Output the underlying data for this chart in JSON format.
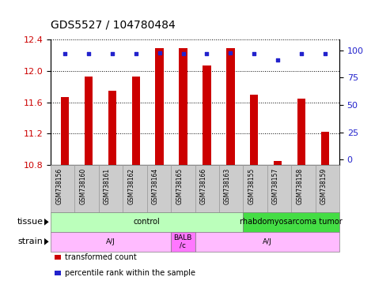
{
  "title": "GDS5527 / 104780484",
  "samples": [
    "GSM738156",
    "GSM738160",
    "GSM738161",
    "GSM738162",
    "GSM738164",
    "GSM738165",
    "GSM738166",
    "GSM738163",
    "GSM738155",
    "GSM738157",
    "GSM738158",
    "GSM738159"
  ],
  "bar_values": [
    11.67,
    11.93,
    11.75,
    11.93,
    12.29,
    12.29,
    12.07,
    12.29,
    11.7,
    10.85,
    11.65,
    11.22
  ],
  "percentile_values": [
    97,
    97,
    97,
    97,
    98,
    97,
    97,
    98,
    97,
    91,
    97,
    97
  ],
  "bar_color": "#cc0000",
  "dot_color": "#2222cc",
  "ylim": [
    10.8,
    12.4
  ],
  "yticks_left": [
    10.8,
    11.2,
    11.6,
    12.0,
    12.4
  ],
  "yticks_right": [
    0,
    25,
    50,
    75,
    100
  ],
  "tissue_groups": [
    {
      "label": "control",
      "start": 0,
      "end": 8,
      "color": "#bbffbb"
    },
    {
      "label": "rhabdomyosarcoma tumor",
      "start": 8,
      "end": 12,
      "color": "#44dd44"
    }
  ],
  "strain_groups": [
    {
      "label": "A/J",
      "start": 0,
      "end": 5,
      "color": "#ffbbff"
    },
    {
      "label": "BALB\n/c",
      "start": 5,
      "end": 6,
      "color": "#ff77ff"
    },
    {
      "label": "A/J",
      "start": 6,
      "end": 12,
      "color": "#ffbbff"
    }
  ],
  "legend_items": [
    {
      "label": "transformed count",
      "color": "#cc0000"
    },
    {
      "label": "percentile rank within the sample",
      "color": "#2222cc"
    }
  ],
  "tick_label_color_left": "#cc0000",
  "tick_label_color_right": "#2222cc",
  "title_fontsize": 10,
  "sample_box_color": "#cccccc",
  "sample_box_border": "#999999"
}
